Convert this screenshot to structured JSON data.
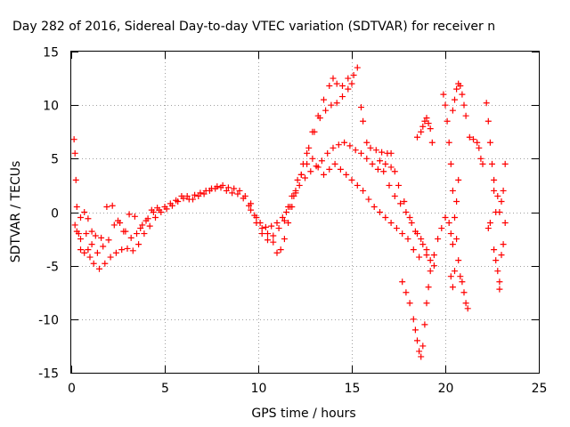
{
  "chart_data": {
    "type": "scatter",
    "title": "Day 282 of 2016, Sidereal Day-to-day VTEC variation (SDTVAR) for receiver n",
    "xlabel": "GPS time / hours",
    "ylabel": "SDTVAR / TECUs",
    "xlim": [
      0,
      25
    ],
    "ylim": [
      -15,
      15
    ],
    "xticks": [
      0,
      5,
      10,
      15,
      20,
      25
    ],
    "yticks": [
      -15,
      -10,
      -5,
      0,
      5,
      10,
      15
    ],
    "grid": true,
    "marker": "plus",
    "color": "#ff0000",
    "series": [
      {
        "values": [
          [
            0.15,
            6.8
          ],
          [
            0.2,
            5.5
          ],
          [
            0.25,
            3.0
          ],
          [
            0.3,
            0.5
          ],
          [
            0.4,
            -2.0
          ],
          [
            0.5,
            -3.5
          ],
          [
            0.7,
            -3.8
          ],
          [
            0.9,
            -3.5
          ],
          [
            1.0,
            -4.2
          ],
          [
            1.2,
            -4.8
          ],
          [
            1.5,
            -5.3
          ],
          [
            1.8,
            -4.8
          ],
          [
            2.1,
            -4.2
          ],
          [
            2.4,
            -3.8
          ],
          [
            2.7,
            -3.5
          ],
          [
            3.0,
            -3.4
          ],
          [
            3.3,
            -3.6
          ],
          [
            3.6,
            -3.0
          ],
          [
            3.9,
            -2.0
          ],
          [
            4.2,
            -1.3
          ],
          [
            4.5,
            -0.5
          ],
          [
            4.8,
            0.0
          ],
          [
            5.1,
            0.3
          ],
          [
            5.4,
            0.6
          ],
          [
            5.7,
            1.0
          ],
          [
            6.0,
            1.3
          ],
          [
            6.3,
            1.2
          ],
          [
            6.6,
            1.6
          ],
          [
            6.9,
            1.8
          ],
          [
            7.2,
            2.0
          ],
          [
            7.5,
            2.2
          ],
          [
            7.8,
            2.4
          ],
          [
            8.1,
            2.5
          ],
          [
            8.4,
            2.3
          ],
          [
            8.7,
            2.2
          ],
          [
            9.0,
            2.0
          ],
          [
            9.3,
            1.5
          ],
          [
            9.6,
            0.8
          ],
          [
            9.9,
            -0.5
          ],
          [
            10.2,
            -1.5
          ],
          [
            10.5,
            -2.0
          ],
          [
            10.8,
            -2.8
          ],
          [
            11.0,
            -3.8
          ],
          [
            11.2,
            -3.5
          ],
          [
            11.4,
            -2.5
          ],
          [
            11.6,
            -1.0
          ],
          [
            11.8,
            0.5
          ],
          [
            12.0,
            1.8
          ],
          [
            12.3,
            3.5
          ],
          [
            12.6,
            5.5
          ],
          [
            12.9,
            7.5
          ],
          [
            13.2,
            9.0
          ],
          [
            13.5,
            10.5
          ],
          [
            13.8,
            11.8
          ],
          [
            14.0,
            12.5
          ],
          [
            14.2,
            12.0
          ],
          [
            14.5,
            11.8
          ],
          [
            14.8,
            12.5
          ],
          [
            15.1,
            12.8
          ],
          [
            15.3,
            13.5
          ]
        ]
      },
      {
        "values": [
          [
            0.2,
            -1.2
          ],
          [
            0.5,
            -2.5
          ],
          [
            0.8,
            -2.0
          ],
          [
            1.1,
            -3.0
          ],
          [
            1.4,
            -3.8
          ],
          [
            1.7,
            -3.2
          ],
          [
            2.0,
            -2.6
          ],
          [
            2.3,
            -1.2
          ],
          [
            2.6,
            -1.0
          ],
          [
            2.9,
            -1.8
          ],
          [
            3.2,
            -2.4
          ],
          [
            3.5,
            -2.0
          ],
          [
            3.8,
            -1.2
          ],
          [
            4.1,
            -0.6
          ],
          [
            4.4,
            0.0
          ],
          [
            4.7,
            0.2
          ],
          [
            5.0,
            0.5
          ],
          [
            5.3,
            0.8
          ],
          [
            5.6,
            1.1
          ],
          [
            5.9,
            1.5
          ],
          [
            6.2,
            1.5
          ],
          [
            6.5,
            1.2
          ],
          [
            6.8,
            1.5
          ],
          [
            7.1,
            1.7
          ],
          [
            7.4,
            2.0
          ],
          [
            7.7,
            2.2
          ],
          [
            8.0,
            2.3
          ],
          [
            8.3,
            2.0
          ],
          [
            8.6,
            1.8
          ],
          [
            8.9,
            1.7
          ],
          [
            9.2,
            1.3
          ],
          [
            9.5,
            0.6
          ],
          [
            9.8,
            -0.3
          ],
          [
            10.1,
            -1.0
          ],
          [
            10.4,
            -1.4
          ],
          [
            10.7,
            -1.3
          ],
          [
            11.0,
            -1.0
          ],
          [
            11.3,
            -0.5
          ],
          [
            11.6,
            0.5
          ],
          [
            11.9,
            1.5
          ],
          [
            12.2,
            2.5
          ],
          [
            12.5,
            3.2
          ],
          [
            12.8,
            3.8
          ],
          [
            13.1,
            4.3
          ],
          [
            13.4,
            4.8
          ],
          [
            13.7,
            5.5
          ],
          [
            14.0,
            6.0
          ],
          [
            14.3,
            6.3
          ],
          [
            14.6,
            6.5
          ],
          [
            14.9,
            6.2
          ],
          [
            15.2,
            5.8
          ],
          [
            15.5,
            5.5
          ],
          [
            15.8,
            5.0
          ],
          [
            16.1,
            4.5
          ],
          [
            16.4,
            4.0
          ],
          [
            16.7,
            3.8
          ],
          [
            17.0,
            2.5
          ],
          [
            17.3,
            1.5
          ],
          [
            17.6,
            0.8
          ],
          [
            17.9,
            0.0
          ],
          [
            18.2,
            -1.0
          ],
          [
            18.5,
            -2.0
          ],
          [
            18.8,
            -3.0
          ],
          [
            19.0,
            -4.0
          ]
        ]
      },
      {
        "values": [
          [
            0.3,
            -1.8
          ],
          [
            0.5,
            -0.5
          ],
          [
            0.7,
            0.0
          ],
          [
            0.9,
            -0.6
          ],
          [
            1.1,
            -1.8
          ],
          [
            1.3,
            -2.2
          ],
          [
            1.6,
            -2.4
          ],
          [
            1.9,
            0.5
          ],
          [
            2.2,
            0.6
          ],
          [
            2.5,
            -0.8
          ],
          [
            2.8,
            -1.8
          ],
          [
            3.1,
            -0.2
          ],
          [
            3.4,
            -0.4
          ],
          [
            3.7,
            -1.5
          ],
          [
            4.0,
            -0.8
          ],
          [
            4.3,
            0.2
          ],
          [
            4.6,
            0.4
          ],
          [
            9.6,
            0.2
          ],
          [
            9.9,
            -1.0
          ],
          [
            10.2,
            -2.0
          ],
          [
            10.5,
            -2.6
          ],
          [
            10.8,
            -2.2
          ],
          [
            11.1,
            -1.5
          ],
          [
            11.4,
            -0.8
          ],
          [
            11.7,
            0.5
          ],
          [
            12.0,
            2.0
          ],
          [
            12.3,
            3.5
          ],
          [
            12.6,
            4.5
          ],
          [
            12.9,
            5.0
          ],
          [
            13.2,
            4.2
          ],
          [
            13.5,
            3.5
          ],
          [
            13.8,
            4.0
          ],
          [
            14.1,
            4.5
          ],
          [
            14.4,
            4.0
          ],
          [
            14.7,
            3.5
          ],
          [
            15.0,
            3.0
          ],
          [
            15.3,
            2.5
          ],
          [
            15.6,
            2.0
          ],
          [
            15.9,
            1.2
          ],
          [
            16.2,
            0.5
          ],
          [
            16.5,
            0.0
          ],
          [
            16.8,
            -0.5
          ],
          [
            17.1,
            -1.0
          ],
          [
            17.4,
            -1.5
          ],
          [
            17.7,
            -2.0
          ],
          [
            18.0,
            -2.5
          ],
          [
            18.3,
            -3.5
          ],
          [
            18.6,
            -4.2
          ]
        ]
      },
      {
        "values": [
          [
            11.5,
            0.0
          ],
          [
            11.8,
            1.5
          ],
          [
            12.1,
            3.0
          ],
          [
            12.4,
            4.5
          ],
          [
            12.7,
            6.0
          ],
          [
            13.0,
            7.5
          ],
          [
            13.3,
            8.8
          ],
          [
            13.6,
            9.5
          ],
          [
            13.9,
            10.0
          ],
          [
            14.2,
            10.2
          ],
          [
            14.5,
            10.8
          ],
          [
            14.8,
            11.5
          ],
          [
            15.0,
            12.0
          ],
          [
            15.5,
            9.8
          ],
          [
            15.6,
            8.5
          ],
          [
            15.8,
            6.5
          ],
          [
            16.0,
            6.0
          ],
          [
            16.3,
            5.8
          ],
          [
            16.6,
            5.6
          ],
          [
            16.9,
            5.5
          ],
          [
            17.1,
            5.5
          ],
          [
            16.5,
            4.8
          ],
          [
            16.8,
            4.5
          ],
          [
            17.1,
            4.2
          ],
          [
            17.3,
            3.8
          ],
          [
            17.5,
            2.5
          ],
          [
            17.8,
            1.0
          ],
          [
            18.1,
            -0.5
          ],
          [
            18.4,
            -1.8
          ],
          [
            18.7,
            -2.5
          ],
          [
            19.0,
            -3.5
          ],
          [
            19.2,
            -4.5
          ],
          [
            19.4,
            -5.0
          ]
        ]
      },
      {
        "values": [
          [
            17.7,
            -6.5
          ],
          [
            17.9,
            -7.5
          ],
          [
            18.1,
            -8.5
          ],
          [
            18.3,
            -10.0
          ],
          [
            18.4,
            -11.0
          ],
          [
            18.5,
            -12.0
          ],
          [
            18.6,
            -13.0
          ],
          [
            18.7,
            -13.5
          ],
          [
            18.8,
            -12.5
          ],
          [
            18.9,
            -10.5
          ],
          [
            19.0,
            -8.5
          ],
          [
            19.1,
            -7.0
          ],
          [
            19.2,
            -5.5
          ],
          [
            19.4,
            -4.0
          ],
          [
            19.6,
            -2.5
          ],
          [
            19.8,
            -1.5
          ],
          [
            20.0,
            -0.5
          ],
          [
            20.2,
            -1.0
          ],
          [
            20.3,
            -2.0
          ],
          [
            20.4,
            -3.0
          ]
        ]
      },
      {
        "values": [
          [
            18.5,
            7.0
          ],
          [
            18.7,
            7.5
          ],
          [
            18.8,
            8.0
          ],
          [
            18.9,
            8.5
          ],
          [
            19.0,
            8.8
          ],
          [
            19.1,
            8.3
          ],
          [
            19.2,
            7.8
          ],
          [
            19.3,
            6.5
          ],
          [
            19.9,
            11.0
          ],
          [
            20.0,
            10.0
          ],
          [
            20.1,
            8.5
          ],
          [
            20.2,
            6.5
          ],
          [
            20.3,
            4.5
          ],
          [
            20.4,
            2.0
          ],
          [
            20.5,
            -0.5
          ],
          [
            20.6,
            -2.5
          ],
          [
            20.7,
            -4.5
          ],
          [
            20.8,
            -6.0
          ],
          [
            20.9,
            -6.5
          ],
          [
            21.0,
            -7.5
          ],
          [
            21.1,
            -8.5
          ],
          [
            21.2,
            -9.0
          ],
          [
            20.4,
            9.5
          ],
          [
            20.5,
            10.5
          ],
          [
            20.6,
            11.5
          ],
          [
            20.7,
            12.0
          ],
          [
            20.8,
            11.8
          ],
          [
            20.9,
            11.0
          ],
          [
            21.0,
            10.0
          ],
          [
            21.1,
            9.0
          ],
          [
            20.3,
            -6.0
          ],
          [
            20.4,
            -7.0
          ],
          [
            20.5,
            -5.5
          ],
          [
            20.6,
            1.0
          ],
          [
            20.7,
            3.0
          ]
        ]
      },
      {
        "values": [
          [
            21.3,
            7.0
          ],
          [
            21.5,
            6.8
          ],
          [
            21.7,
            6.5
          ],
          [
            21.8,
            6.0
          ],
          [
            21.9,
            5.0
          ],
          [
            22.0,
            4.5
          ],
          [
            22.2,
            10.2
          ],
          [
            22.3,
            8.5
          ],
          [
            22.4,
            6.5
          ],
          [
            22.5,
            4.5
          ],
          [
            22.6,
            2.0
          ],
          [
            22.7,
            0.0
          ],
          [
            22.3,
            -1.5
          ],
          [
            22.4,
            -1.0
          ],
          [
            22.6,
            3.0
          ],
          [
            22.8,
            1.5
          ],
          [
            22.9,
            0.0
          ],
          [
            22.6,
            -3.5
          ],
          [
            22.7,
            -4.5
          ],
          [
            22.8,
            -5.5
          ],
          [
            22.9,
            -6.5
          ],
          [
            22.9,
            -7.2
          ],
          [
            23.0,
            -4.0
          ],
          [
            23.1,
            -3.0
          ],
          [
            23.1,
            2.0
          ],
          [
            23.2,
            4.5
          ],
          [
            23.0,
            1.0
          ],
          [
            23.2,
            -1.0
          ]
        ]
      }
    ]
  }
}
